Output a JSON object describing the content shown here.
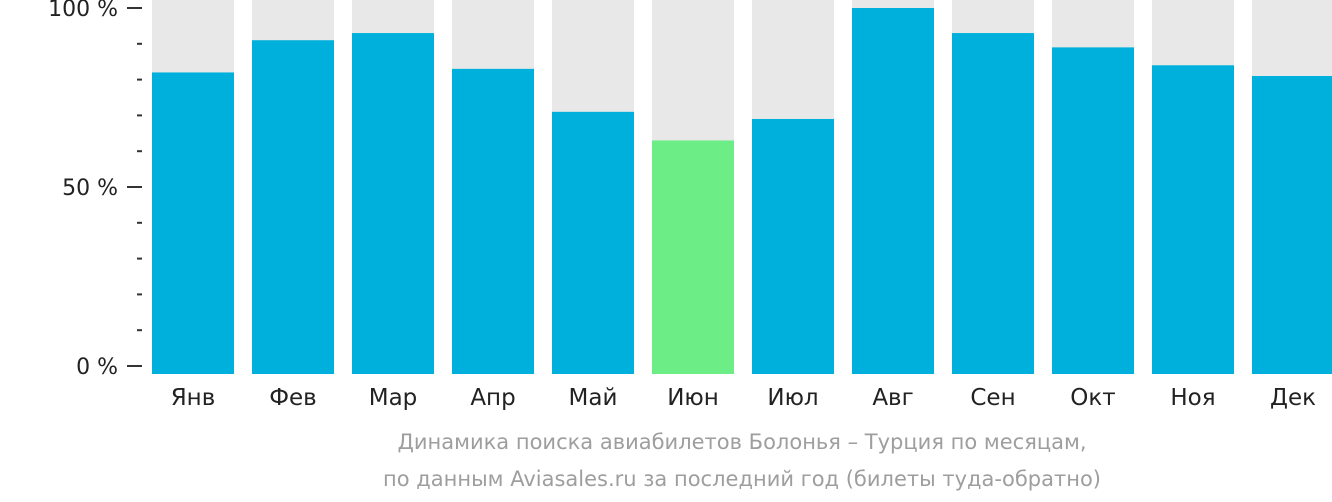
{
  "chart_data": {
    "type": "bar",
    "categories": [
      "Янв",
      "Фев",
      "Мар",
      "Апр",
      "Май",
      "Июн",
      "Июл",
      "Авг",
      "Сен",
      "Окт",
      "Ноя",
      "Дек"
    ],
    "values": [
      82,
      91,
      93,
      83,
      71,
      63,
      69,
      100,
      93,
      89,
      84,
      81
    ],
    "highlight_index": 5,
    "ylim": [
      0,
      100
    ],
    "y_ticks": [
      {
        "value": 100,
        "label": "100 %"
      },
      {
        "value": 50,
        "label": "50 %"
      },
      {
        "value": 0,
        "label": "0 %"
      }
    ],
    "y_minor_tick_step": 10,
    "grid": false,
    "colors": {
      "bar": "#00b0dc",
      "highlight": "#6ced86",
      "track": "#e8e8e8",
      "axis": "#333333",
      "text": "#222222"
    }
  },
  "caption": {
    "line1": "Динамика поиска авиабилетов Болонья – Турция по месяцам,",
    "line2": "по данным Aviasales.ru за последний год (билеты туда-обратно)"
  }
}
